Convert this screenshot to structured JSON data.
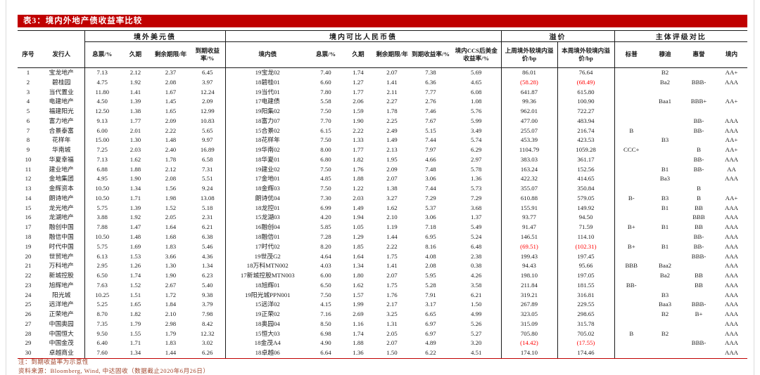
{
  "title": "表3：境内外地产债收益率比较",
  "colors": {
    "accent_red": "#C00000",
    "negative_red": "#FF0000",
    "note_color": "#A0432A"
  },
  "header": {
    "groups": [
      {
        "label": "",
        "span": 2
      },
      {
        "label": "境外美元债",
        "span": 4
      },
      {
        "label": "境内可比人民币债",
        "span": 6
      },
      {
        "label": "溢价",
        "span": 2
      },
      {
        "label": "主体评级对比",
        "span": 4
      }
    ],
    "columns": [
      "序号",
      "发行人",
      "息票/%",
      "久期",
      "剩余期限/年",
      "到期收益率/%",
      "境内债",
      "息票/%",
      "久期",
      "剩余期限/年",
      "到期收益率/%",
      "境内CCS后美金收益率/%",
      "上周境外较境内溢价/bp",
      "本周境外较境内溢价/bp",
      "标普",
      "穆迪",
      "惠誉",
      "境内"
    ]
  },
  "rows": [
    [
      "1",
      "宝龙地产",
      "7.13",
      "2.12",
      "2.37",
      "6.45",
      "19宝龙02",
      "7.40",
      "1.74",
      "2.07",
      "7.38",
      "5.69",
      "86.01",
      "76.64",
      "",
      "B2",
      "",
      "AA+"
    ],
    [
      "2",
      "碧桂园",
      "4.75",
      "1.92",
      "2.08",
      "3.97",
      "18碧桂01",
      "6.60",
      "1.27",
      "1.41",
      "6.36",
      "4.65",
      "(58.28)",
      "(68.49)",
      "",
      "Ba2",
      "BBB-",
      "AAA"
    ],
    [
      "3",
      "当代置业",
      "11.80",
      "1.41",
      "1.67",
      "12.24",
      "19当代01",
      "7.80",
      "1.77",
      "2.11",
      "7.77",
      "6.08",
      "641.87",
      "615.80",
      "",
      "",
      "",
      ""
    ],
    [
      "4",
      "电建地产",
      "4.50",
      "1.39",
      "1.45",
      "2.09",
      "17电建债",
      "5.58",
      "2.06",
      "2.27",
      "2.76",
      "1.08",
      "99.36",
      "100.90",
      "",
      "Baa1",
      "BBB+",
      "AA+"
    ],
    [
      "5",
      "福建阳光",
      "12.50",
      "1.38",
      "1.65",
      "12.99",
      "19阳集02",
      "7.50",
      "1.59",
      "1.78",
      "7.46",
      "5.76",
      "962.01",
      "722.27",
      "",
      "",
      "",
      ""
    ],
    [
      "6",
      "富力地产",
      "9.13",
      "1.77",
      "2.09",
      "10.83",
      "18富力07",
      "7.70",
      "1.90",
      "2.25",
      "7.67",
      "5.99",
      "477.00",
      "483.94",
      "",
      "",
      "BB-",
      "AAA"
    ],
    [
      "7",
      "合景泰富",
      "6.00",
      "2.01",
      "2.22",
      "5.65",
      "15合景02",
      "6.15",
      "2.22",
      "2.49",
      "5.15",
      "3.49",
      "255.07",
      "216.74",
      "B",
      "",
      "BB-",
      "AAA"
    ],
    [
      "8",
      "花样年",
      "15.00",
      "1.30",
      "1.48",
      "9.97",
      "18花样年",
      "7.50",
      "1.33",
      "1.49",
      "7.44",
      "5.74",
      "453.39",
      "423.53",
      "",
      "B3",
      "",
      "AA+"
    ],
    [
      "9",
      "华南城",
      "7.25",
      "2.03",
      "2.40",
      "16.89",
      "19华南02",
      "8.00",
      "1.77",
      "2.13",
      "7.97",
      "6.29",
      "1104.79",
      "1059.28",
      "CCC+",
      "",
      "B",
      "AA+"
    ],
    [
      "10",
      "华夏幸福",
      "7.13",
      "1.62",
      "1.78",
      "6.58",
      "18华夏01",
      "6.80",
      "1.82",
      "1.95",
      "4.66",
      "2.97",
      "383.03",
      "361.17",
      "",
      "",
      "BB-",
      "AAA"
    ],
    [
      "11",
      "建业地产",
      "6.88",
      "1.88",
      "2.12",
      "7.31",
      "19建业02",
      "7.50",
      "1.76",
      "2.09",
      "7.48",
      "5.78",
      "163.24",
      "152.56",
      "",
      "B1",
      "BB-",
      "AA"
    ],
    [
      "12",
      "金地集团",
      "4.95",
      "1.90",
      "2.08",
      "5.51",
      "17金地01",
      "4.85",
      "1.88",
      "2.07",
      "3.06",
      "1.36",
      "422.32",
      "414.65",
      "",
      "Ba3",
      "",
      "AAA"
    ],
    [
      "13",
      "金辉资本",
      "10.50",
      "1.34",
      "1.56",
      "9.24",
      "18金辉03",
      "7.50",
      "1.22",
      "1.38",
      "7.44",
      "5.73",
      "355.07",
      "350.84",
      "",
      "",
      "B",
      ""
    ],
    [
      "14",
      "朗诗地产",
      "10.50",
      "1.71",
      "1.98",
      "13.08",
      "朗诗优04",
      "7.30",
      "2.03",
      "3.27",
      "7.29",
      "7.29",
      "610.88",
      "579.05",
      "B-",
      "B3",
      "B",
      "AA+"
    ],
    [
      "15",
      "龙光地产",
      "5.75",
      "1.39",
      "1.52",
      "5.18",
      "18龙控01",
      "6.99",
      "1.49",
      "1.62",
      "5.37",
      "3.68",
      "155.91",
      "149.92",
      "",
      "B1",
      "BB",
      "AAA"
    ],
    [
      "16",
      "龙湖地产",
      "3.88",
      "1.92",
      "2.05",
      "2.31",
      "15龙湖03",
      "4.20",
      "1.94",
      "2.10",
      "3.06",
      "1.37",
      "93.77",
      "94.50",
      "",
      "",
      "BBB",
      "AAA"
    ],
    [
      "17",
      "融创中国",
      "7.88",
      "1.47",
      "1.64",
      "6.21",
      "16融创04",
      "5.85",
      "1.05",
      "1.19",
      "7.18",
      "5.49",
      "91.47",
      "71.59",
      "B+",
      "B1",
      "BB",
      "AAA"
    ],
    [
      "18",
      "融信中国",
      "10.50",
      "1.48",
      "1.68",
      "6.38",
      "18融信01",
      "7.28",
      "1.29",
      "1.44",
      "6.95",
      "5.24",
      "146.51",
      "114.10",
      "",
      "",
      "BB-",
      "AAA"
    ],
    [
      "19",
      "时代中国",
      "5.75",
      "1.69",
      "1.83",
      "5.46",
      "17时代02",
      "8.20",
      "1.85",
      "2.22",
      "8.16",
      "6.48",
      "(69.51)",
      "(102.31)",
      "B+",
      "B1",
      "BB-",
      "AAA"
    ],
    [
      "20",
      "世贸地产",
      "6.13",
      "1.53",
      "3.66",
      "4.36",
      "19世茂G2",
      "4.64",
      "1.64",
      "1.75",
      "4.08",
      "2.38",
      "199.43",
      "197.45",
      "",
      "",
      "BBB-",
      "AAA"
    ],
    [
      "21",
      "万科地产",
      "2.95",
      "1.26",
      "1.30",
      "1.34",
      "18万科MTN002",
      "4.03",
      "1.34",
      "1.41",
      "2.08",
      "0.38",
      "94.43",
      "95.66",
      "BBB",
      "Baa2",
      "",
      "AAA"
    ],
    [
      "22",
      "新城控股",
      "6.50",
      "1.74",
      "1.90",
      "6.23",
      "17新城控股MTN003",
      "6.00",
      "1.80",
      "2.07",
      "5.95",
      "4.26",
      "198.10",
      "197.05",
      "",
      "Ba2",
      "BB",
      "AAA"
    ],
    [
      "23",
      "旭辉地产",
      "7.63",
      "1.52",
      "2.67",
      "5.40",
      "18旭辉01",
      "6.50",
      "1.62",
      "1.75",
      "5.28",
      "3.58",
      "211.84",
      "181.55",
      "BB-",
      "",
      "BB",
      "AAA"
    ],
    [
      "24",
      "阳光城",
      "10.25",
      "1.51",
      "1.72",
      "9.38",
      "19阳光城PPN001",
      "7.50",
      "1.57",
      "1.76",
      "7.91",
      "6.21",
      "319.21",
      "316.81",
      "",
      "B3",
      "",
      "AAA"
    ],
    [
      "25",
      "远洋地产",
      "5.25",
      "1.65",
      "1.84",
      "3.79",
      "15远洋02",
      "4.15",
      "1.99",
      "2.17",
      "3.17",
      "1.50",
      "267.89",
      "229.55",
      "",
      "Baa3",
      "BBB-",
      "AAA"
    ],
    [
      "26",
      "正荣地产",
      "8.70",
      "1.82",
      "2.10",
      "7.98",
      "19正荣02",
      "7.16",
      "2.69",
      "3.25",
      "6.65",
      "4.99",
      "323.05",
      "298.65",
      "",
      "B2",
      "B+",
      "AAA"
    ],
    [
      "27",
      "中国奥园",
      "7.35",
      "1.79",
      "2.98",
      "8.42",
      "18奥园04",
      "8.50",
      "1.16",
      "1.31",
      "6.97",
      "5.26",
      "315.09",
      "315.78",
      "",
      "",
      "",
      "AAA"
    ],
    [
      "28",
      "中国恒大",
      "9.50",
      "1.55",
      "1.79",
      "12.32",
      "15恒大03",
      "6.98",
      "1.74",
      "2.05",
      "6.97",
      "5.27",
      "705.80",
      "705.02",
      "B",
      "B2",
      "",
      "AAA"
    ],
    [
      "29",
      "中国金茂",
      "6.40",
      "1.71",
      "1.83",
      "3.02",
      "18金茂A4",
      "4.90",
      "1.88",
      "2.07",
      "4.89",
      "3.20",
      "(14.42)",
      "(17.55)",
      "",
      "",
      "BBB-",
      "AAA"
    ],
    [
      "30",
      "卓越商业",
      "7.60",
      "1.34",
      "1.44",
      "6.26",
      "18卓越06",
      "6.64",
      "1.36",
      "1.50",
      "6.22",
      "4.51",
      "174.10",
      "174.46",
      "",
      "",
      "",
      "AAA"
    ]
  ],
  "notes": [
    "注：到期收益率为示意性",
    "资料来源：Bloomberg, Wind, 中达固收（数据截止2020年6月26日）"
  ]
}
